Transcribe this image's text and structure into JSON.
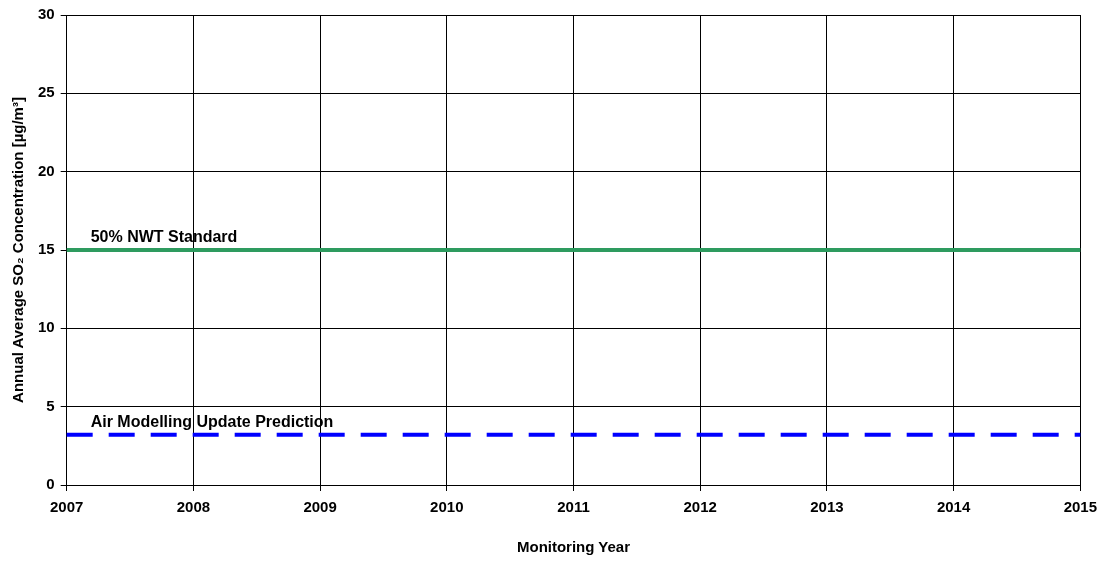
{
  "chart_data": {
    "type": "line",
    "xlabel": "Monitoring Year",
    "ylabel": "Annual Average SO₂ Concentration [µg/m³]",
    "xlim": [
      2007,
      2015
    ],
    "xticks": [
      2007,
      2008,
      2009,
      2010,
      2011,
      2012,
      2013,
      2014,
      2015
    ],
    "ylim": [
      0,
      30
    ],
    "yticks": [
      0,
      5,
      10,
      15,
      20,
      25,
      30
    ],
    "grid": true,
    "legend": false,
    "ref_lines": [
      {
        "axis": "y",
        "value": 15,
        "label": "50% NWT Standard",
        "color": "#2e9b5f",
        "line_style": "solid"
      },
      {
        "axis": "y",
        "value": 3.2,
        "label": "Air Modelling Update Prediction",
        "color": "#0000ff",
        "line_style": "dashed"
      }
    ]
  }
}
